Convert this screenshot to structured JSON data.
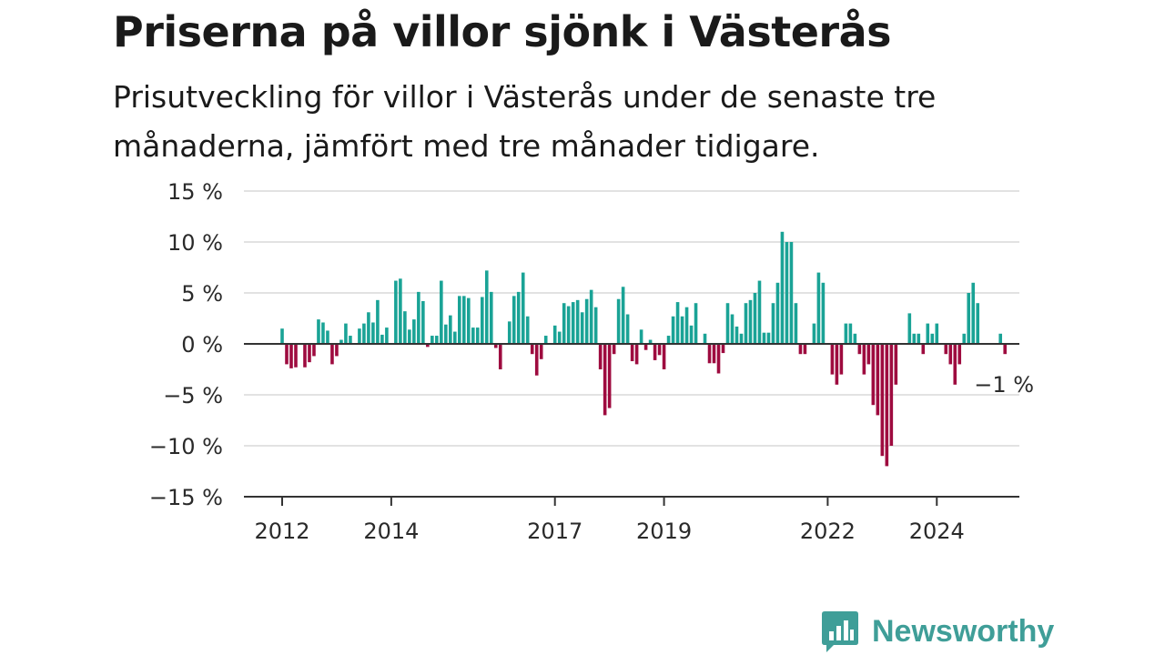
{
  "header": {
    "title": "Priserna på villor sjönk i Västerås",
    "subtitle": "Prisutveckling för villor i Västerås under de senaste tre månaderna, jämfört med tre månader tidigare."
  },
  "brand": {
    "name": "Newsworthy",
    "color": "#3f9e98"
  },
  "colors": {
    "positive": "#1aa396",
    "negative": "#9e0b3f",
    "grid": "#d8d8d8",
    "axis": "#333333"
  },
  "chart_data": {
    "type": "bar",
    "title": "Priserna på villor sjönk i Västerås",
    "subtitle": "Prisutveckling för villor i Västerås under de senaste tre månaderna, jämfört med tre månader tidigare.",
    "xlabel": "",
    "ylabel": "",
    "ylim": [
      -15,
      15
    ],
    "yticks": [
      15,
      10,
      5,
      0,
      -5,
      -10,
      -15
    ],
    "ytick_labels": [
      "15 %",
      "10 %",
      "5 %",
      "0 %",
      "−5 %",
      "−10 %",
      "−15 %"
    ],
    "xticks": [
      "2012",
      "2014",
      "2017",
      "2019",
      "2022",
      "2024"
    ],
    "x_start": "2012-01",
    "x_end": "2025-04",
    "grid": true,
    "last_value_label": "−1 %",
    "series": [
      {
        "values": [
          1.5,
          -2,
          -2.4,
          -2.3,
          0,
          -2.3,
          -1.8,
          -1.2,
          2.4,
          2.1,
          1.3,
          -2,
          -1.2,
          0.4,
          2,
          0.8,
          0,
          1.5,
          2,
          3.1,
          2.1,
          4.3,
          0.9,
          1.6,
          0,
          6.2,
          6.4,
          3.2,
          1.4,
          2.4,
          5.1,
          4.2,
          -0.3,
          0.8,
          0.8,
          6.2,
          1.9,
          2.8,
          1.2,
          4.7,
          4.7,
          4.5,
          1.6,
          1.6,
          4.6,
          7.2,
          5.1,
          -0.4,
          -2.5,
          0,
          2.2,
          4.7,
          5.1,
          7,
          2.7,
          -1,
          -3.1,
          -1.5,
          0.8,
          0,
          1.8,
          1.2,
          4,
          3.7,
          4.1,
          4.3,
          3.1,
          4.4,
          5.3,
          3.6,
          -2.5,
          -7,
          -6.3,
          -1,
          4.4,
          5.6,
          2.9,
          -1.7,
          -2,
          1.4,
          -0.6,
          0.4,
          -1.6,
          -1.1,
          -2.5,
          0.8,
          2.7,
          4.1,
          2.7,
          3.6,
          1.8,
          4,
          0,
          1,
          -1.9,
          -1.9,
          -2.9,
          -0.9,
          4,
          2.9,
          1.7,
          1,
          4,
          4.3,
          5,
          6.2,
          1.1,
          1.1,
          4,
          6,
          11,
          10,
          10,
          4,
          -1,
          -1,
          0,
          2,
          7,
          6,
          0,
          -3,
          -4,
          -3,
          2,
          2,
          1,
          -1,
          -3,
          -2,
          -6,
          -7,
          -11,
          -12,
          -10,
          -4,
          0,
          0,
          3,
          1,
          1,
          -1,
          2,
          1,
          2,
          0,
          -1,
          -2,
          -4,
          -2,
          1,
          5,
          6,
          4,
          0,
          0,
          0,
          0,
          1,
          -1
        ]
      }
    ]
  }
}
